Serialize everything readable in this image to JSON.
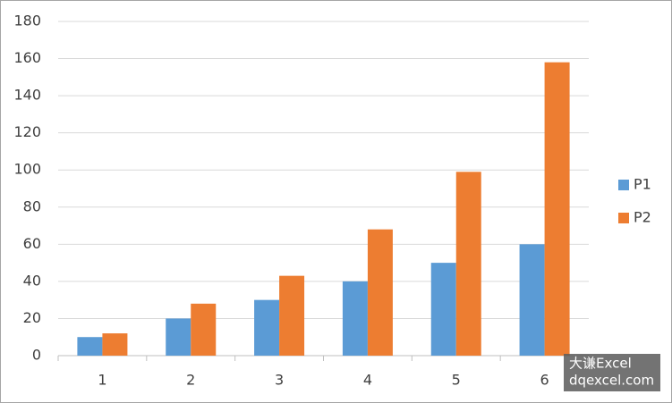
{
  "chart_data": {
    "type": "bar",
    "categories": [
      "1",
      "2",
      "3",
      "4",
      "5",
      "6"
    ],
    "series": [
      {
        "name": "P1",
        "color": "#5b9bd5",
        "values": [
          10,
          20,
          30,
          40,
          50,
          60
        ]
      },
      {
        "name": "P2",
        "color": "#ed7d31",
        "values": [
          12,
          28,
          43,
          68,
          99,
          158
        ]
      }
    ],
    "ylim": [
      0,
      180
    ],
    "yticks": [
      0,
      20,
      40,
      60,
      80,
      100,
      120,
      140,
      160,
      180
    ],
    "grid": true,
    "legend": "right"
  },
  "watermark": {
    "line1": "大谦Excel",
    "line2": "dqexcel.com"
  }
}
